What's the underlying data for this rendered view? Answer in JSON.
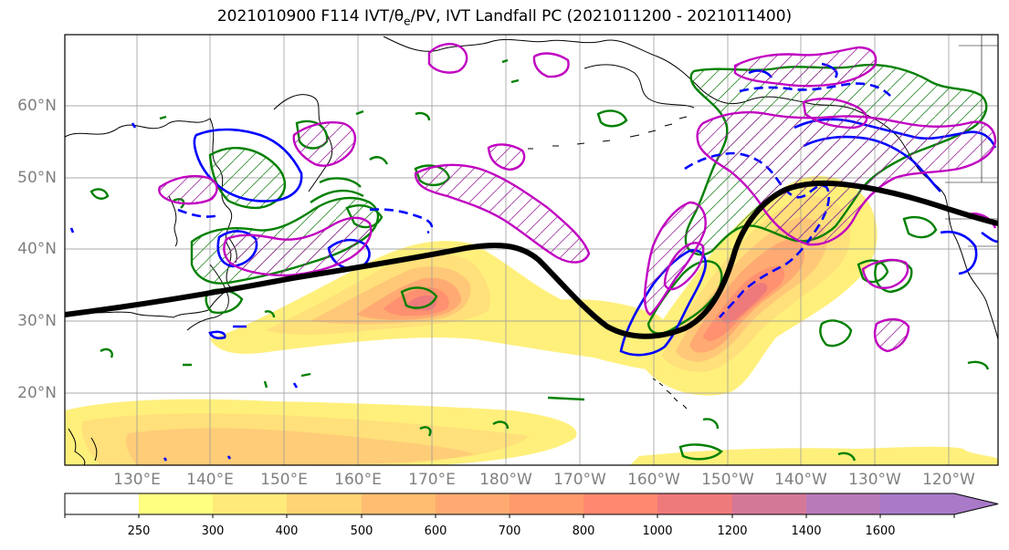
{
  "title": {
    "text_before": "2021010900 F114 IVT/θ",
    "subscript": "e",
    "text_after": "/PV, IVT Landfall PC (2021011200 - 2021011400)"
  },
  "map": {
    "lat_labels": [
      "60°N",
      "50°N",
      "40°N",
      "30°N",
      "20°N"
    ],
    "lon_labels": [
      "130°E",
      "140°E",
      "150°E",
      "160°E",
      "170°E",
      "180°W",
      "170°W",
      "160°W",
      "150°W",
      "140°W",
      "130°W",
      "120°W"
    ],
    "colors": {
      "land_outline": "#000000",
      "gridline": "#999999",
      "theta_e_contour": "#008000",
      "ivt_pc_contour": "#0000ff",
      "pv_contour": "#c000c0",
      "landfall_path": "#000000"
    }
  },
  "colorbar": {
    "tick_labels": [
      "250",
      "300",
      "400",
      "500",
      "600",
      "700",
      "800",
      "1000",
      "1200",
      "1400",
      "1600"
    ],
    "bin_colors": [
      "#ffffff",
      "#ffff80",
      "#ffea7a",
      "#ffd474",
      "#ffbd72",
      "#ffaa70",
      "#ff9a6c",
      "#ff8870",
      "#ee7a7c",
      "#d47898",
      "#b87ab8",
      "#a87ac8"
    ],
    "extend": "max"
  }
}
